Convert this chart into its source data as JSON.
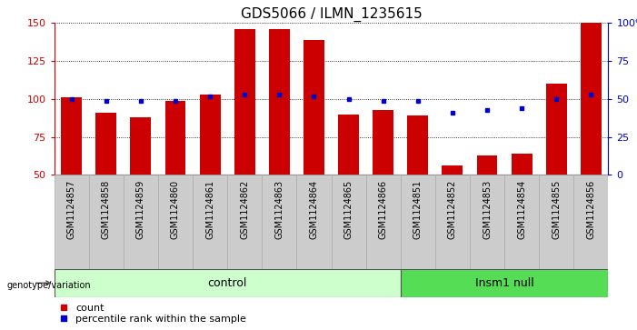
{
  "title": "GDS5066 / ILMN_1235615",
  "samples": [
    "GSM1124857",
    "GSM1124858",
    "GSM1124859",
    "GSM1124860",
    "GSM1124861",
    "GSM1124862",
    "GSM1124863",
    "GSM1124864",
    "GSM1124865",
    "GSM1124866",
    "GSM1124851",
    "GSM1124852",
    "GSM1124853",
    "GSM1124854",
    "GSM1124855",
    "GSM1124856"
  ],
  "counts": [
    101,
    91,
    88,
    99,
    103,
    146,
    146,
    139,
    90,
    93,
    89,
    56,
    63,
    64,
    110,
    151
  ],
  "percentile_ranks": [
    50,
    49,
    49,
    49,
    52,
    53,
    53,
    52,
    50,
    49,
    49,
    41,
    43,
    44,
    50,
    53
  ],
  "control_indices": [
    0,
    1,
    2,
    3,
    4,
    5,
    6,
    7,
    8,
    9
  ],
  "insm1_indices": [
    10,
    11,
    12,
    13,
    14,
    15
  ],
  "ylim_left": [
    50,
    150
  ],
  "ylim_right": [
    0,
    100
  ],
  "bar_color": "#cc0000",
  "dot_color": "#0000cc",
  "control_bg": "#ccffcc",
  "insm1_bg": "#55dd55",
  "sample_bg": "#cccccc",
  "title_fontsize": 11,
  "tick_fontsize": 7,
  "legend_fontsize": 8,
  "group_label_fontsize": 9
}
